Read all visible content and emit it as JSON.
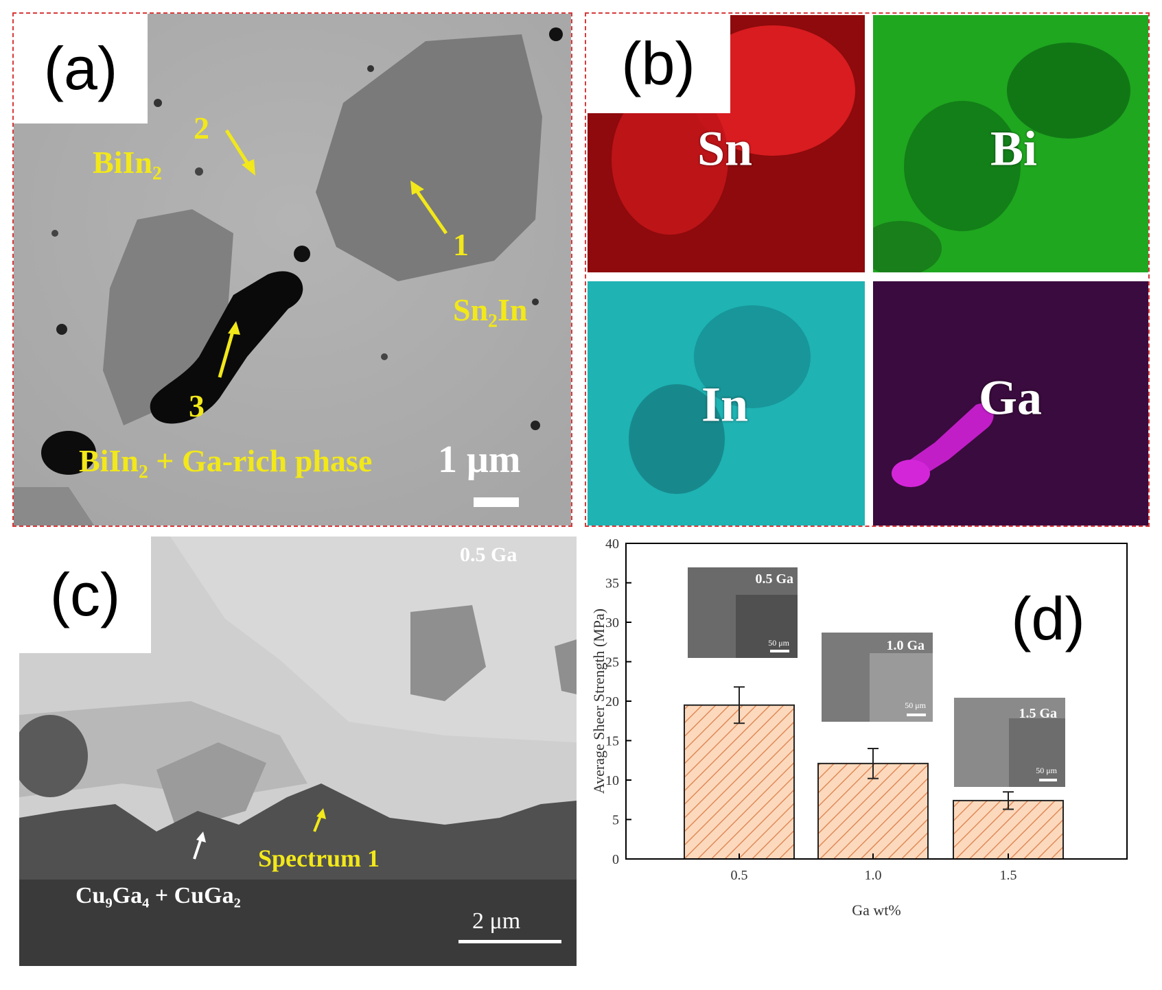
{
  "panel_a": {
    "tag": "(a)",
    "labels": {
      "biin2_top": "BiIn₂",
      "sn2in": "Sn₂In",
      "biin2_ga": "BiIn₂ +  Ga-rich phase",
      "n1": "1",
      "n2": "2",
      "n3": "3"
    },
    "scale": "1 μm"
  },
  "panel_b": {
    "tag": "(b)",
    "maps": [
      {
        "element": "Sn",
        "color": "#8e0a0c"
      },
      {
        "element": "Bi",
        "color": "#1fa71f"
      },
      {
        "element": "In",
        "color": "#1fb3b3"
      },
      {
        "element": "Ga",
        "color": "#3a0b3e"
      }
    ]
  },
  "panel_c": {
    "tag": "(c)",
    "corner": "0.5 Ga",
    "spectrum": "Spectrum 1",
    "phase": "Cu₉Ga₄ + CuGa₂",
    "scale": "2 μm"
  },
  "panel_d": {
    "tag": "(d)",
    "insets": [
      {
        "label": "0.5 Ga",
        "scale": "50 μm"
      },
      {
        "label": "1.0 Ga",
        "scale": "50 μm"
      },
      {
        "label": "1.5 Ga",
        "scale": "50 μm"
      }
    ]
  },
  "chart_data": {
    "type": "bar",
    "categories": [
      "0.5",
      "1.0",
      "1.5"
    ],
    "values": [
      19.5,
      12.1,
      7.4
    ],
    "errors": [
      2.3,
      1.9,
      1.1
    ],
    "xlabel": "Ga wt%",
    "ylabel": "Average Sheer Strength (MPa)",
    "ylim": [
      0,
      40
    ],
    "yticks": [
      "0",
      "5",
      "10",
      "15",
      "20",
      "25",
      "30",
      "35",
      "40"
    ],
    "bar_fill": "#fcd9bd",
    "hatch_color": "#e08a58"
  }
}
